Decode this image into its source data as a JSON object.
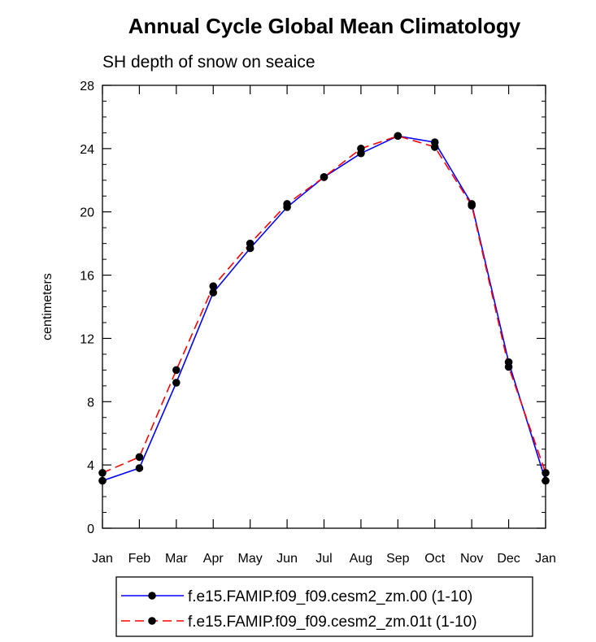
{
  "chart_data": {
    "type": "line",
    "title": "Annual Cycle Global Mean Climatology",
    "subtitle": "SH depth of snow on seaice",
    "ylabel": "centimeters",
    "xlabel": "",
    "categories": [
      "Jan",
      "Feb",
      "Mar",
      "Apr",
      "May",
      "Jun",
      "Jul",
      "Aug",
      "Sep",
      "Oct",
      "Nov",
      "Dec",
      "Jan"
    ],
    "ylim": [
      0,
      28
    ],
    "yticks": [
      0,
      4,
      8,
      12,
      16,
      20,
      24,
      28
    ],
    "ytick_labels": [
      "0",
      "4",
      "8",
      "12",
      "16",
      "20",
      "24",
      "28"
    ],
    "series": [
      {
        "name": "f.e15.FAMIP.f09_f09.cesm2_zm.00 (1-10)",
        "color": "#0000ff",
        "dash": "solid",
        "values": [
          3.0,
          3.8,
          9.2,
          14.9,
          17.7,
          20.3,
          22.2,
          23.7,
          24.8,
          24.4,
          20.5,
          10.5,
          3.0
        ]
      },
      {
        "name": "f.e15.FAMIP.f09_f09.cesm2_zm.01t (1-10)",
        "color": "#ff0000",
        "dash": "dashed",
        "values": [
          3.5,
          4.5,
          10.0,
          15.3,
          18.0,
          20.5,
          22.2,
          24.0,
          24.8,
          24.1,
          20.4,
          10.2,
          3.5
        ]
      }
    ],
    "legend_position": "bottom-center",
    "grid": false
  }
}
